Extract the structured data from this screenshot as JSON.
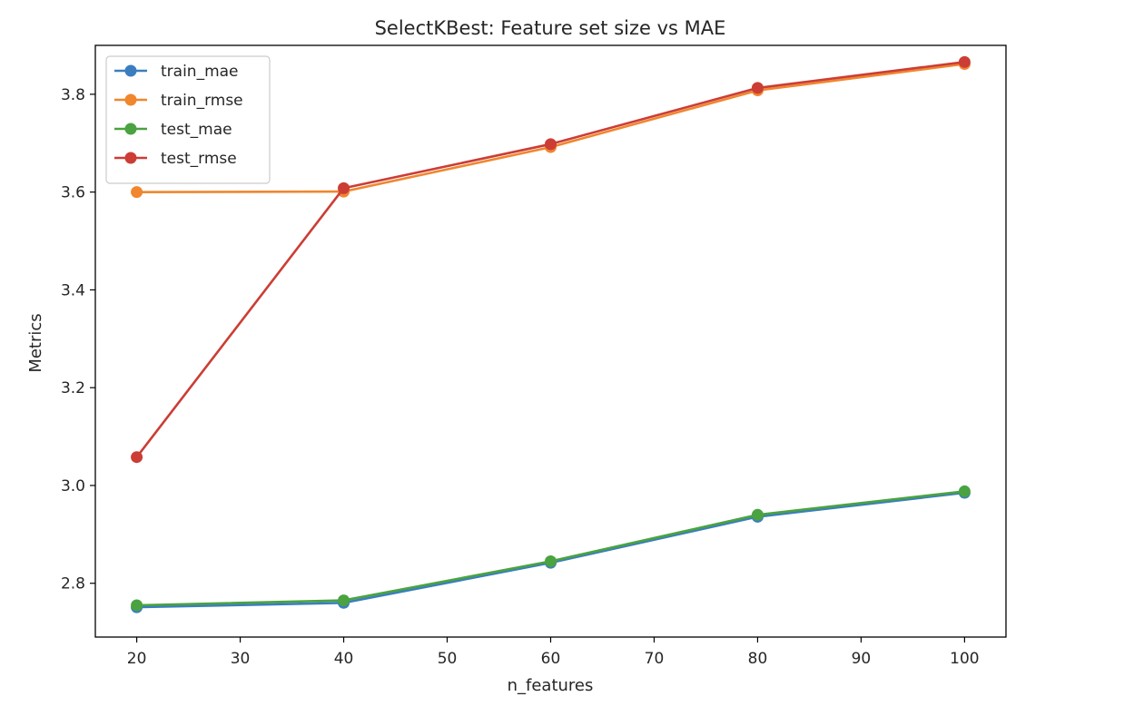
{
  "chart_data": {
    "type": "line",
    "title": "SelectKBest: Feature set size vs MAE",
    "xlabel": "n_features",
    "ylabel": "Metrics",
    "xlim": [
      16,
      104
    ],
    "ylim": [
      2.69,
      3.9
    ],
    "xticks": [
      20,
      30,
      40,
      50,
      60,
      70,
      80,
      90,
      100
    ],
    "yticks": [
      2.8,
      3.0,
      3.2,
      3.4,
      3.6,
      3.8
    ],
    "grid": false,
    "legend_position": "top-left",
    "x": [
      20,
      40,
      60,
      80,
      100
    ],
    "series": [
      {
        "name": "train_mae",
        "color": "#3a7ebf",
        "values": [
          2.751,
          2.76,
          2.842,
          2.936,
          2.985
        ]
      },
      {
        "name": "train_rmse",
        "color": "#f0862e",
        "values": [
          3.6,
          3.601,
          3.692,
          3.808,
          3.862
        ]
      },
      {
        "name": "test_mae",
        "color": "#4aa340",
        "values": [
          2.755,
          2.765,
          2.845,
          2.94,
          2.988
        ]
      },
      {
        "name": "test_rmse",
        "color": "#cc3d35",
        "values": [
          3.058,
          3.608,
          3.698,
          3.813,
          3.866
        ]
      }
    ]
  }
}
